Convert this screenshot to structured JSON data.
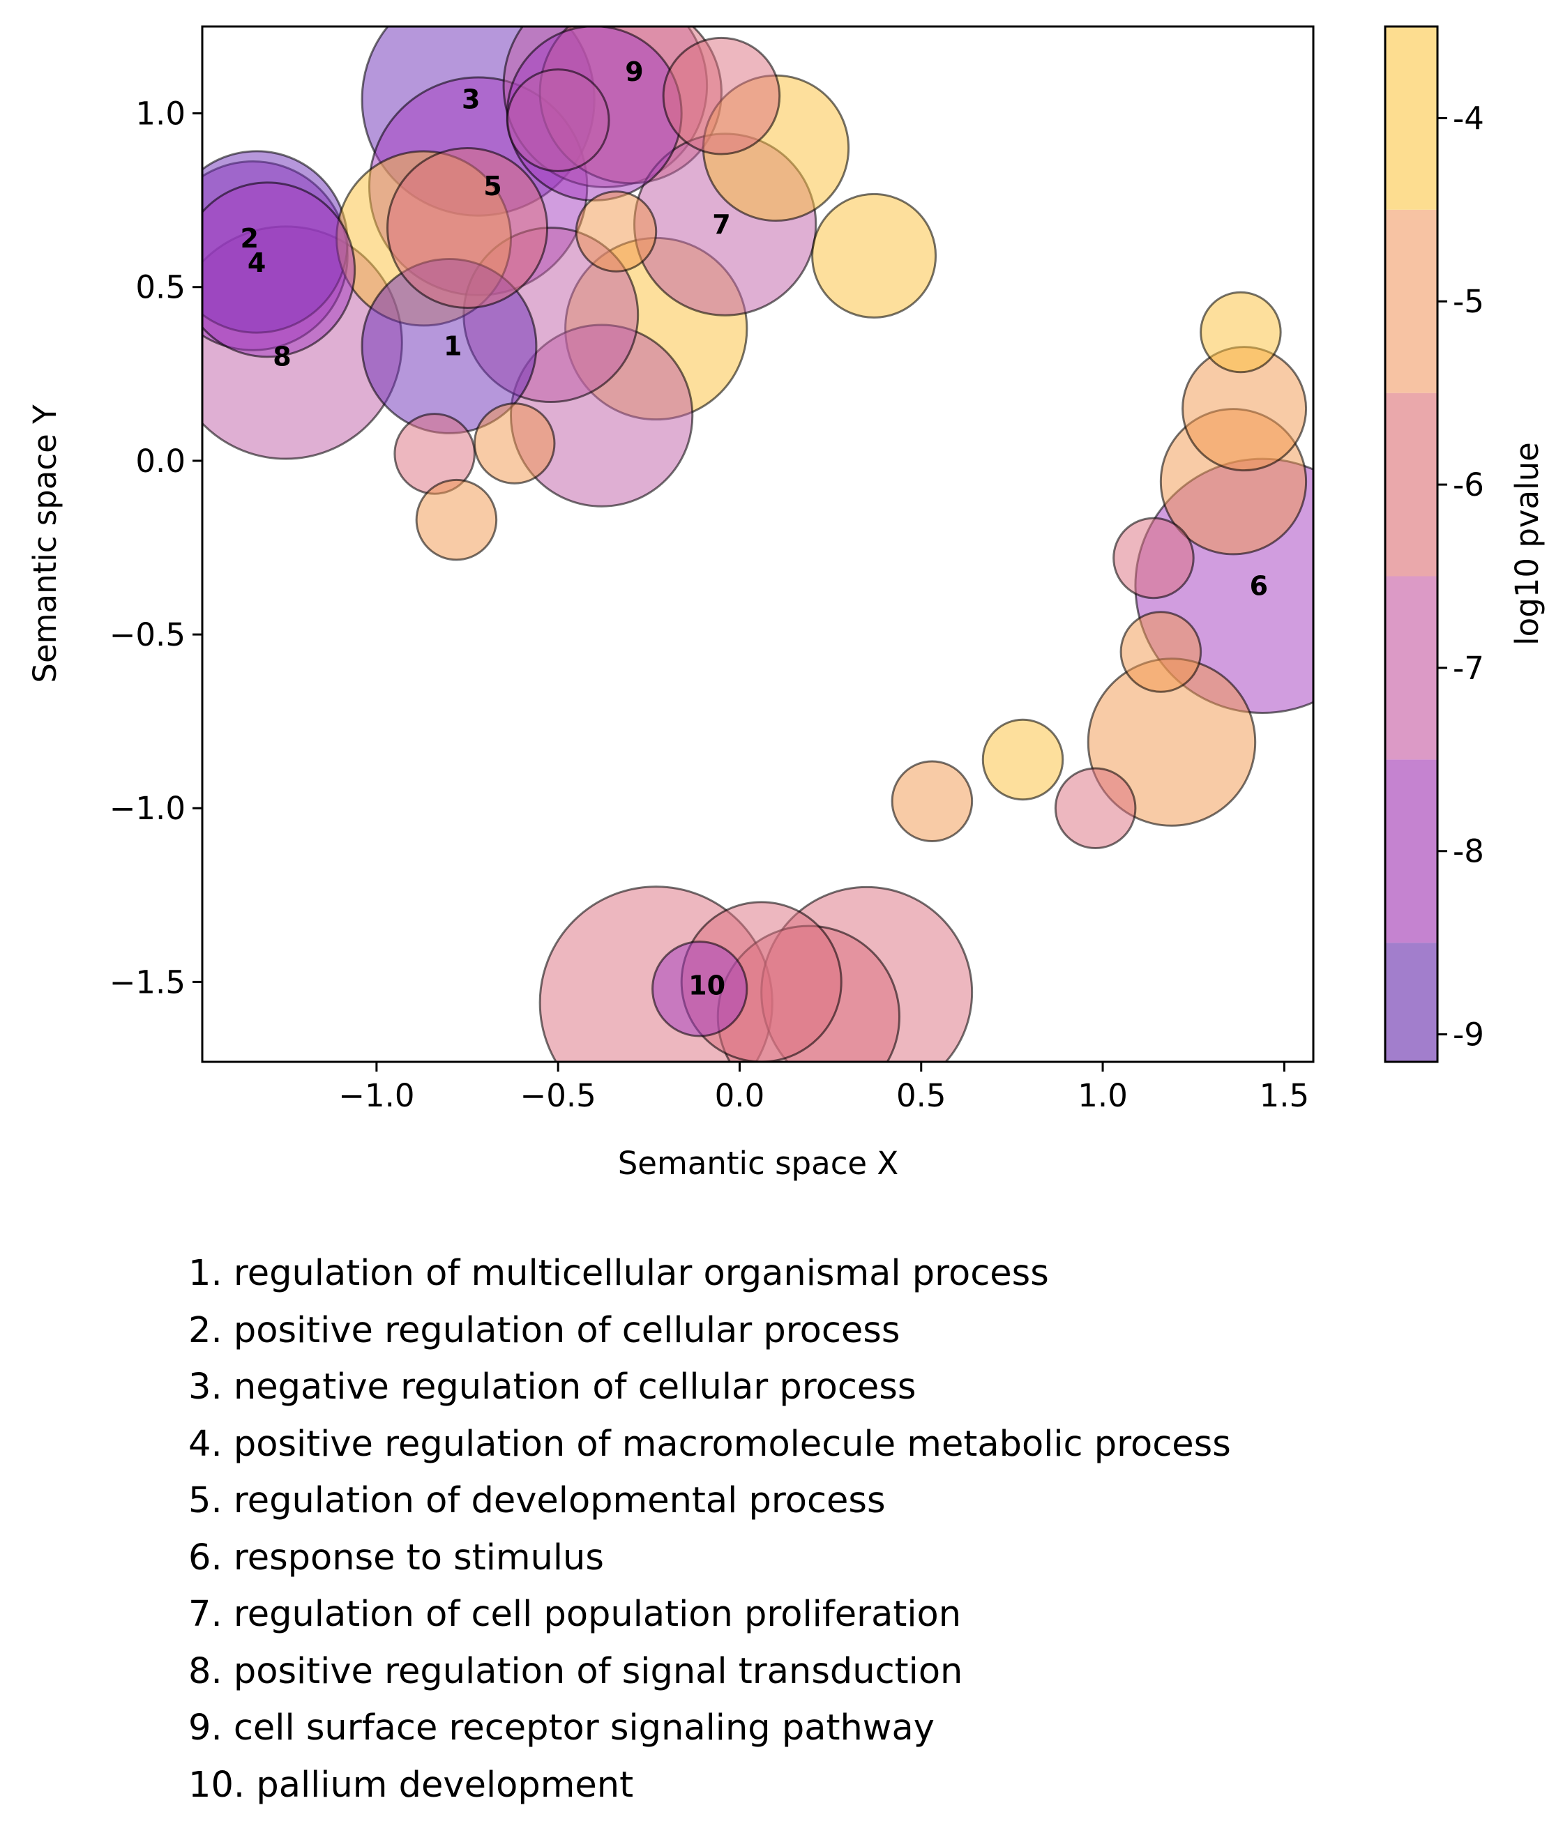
{
  "chart_data": {
    "type": "scatter",
    "variant": "bubble",
    "xlabel": "Semantic space X",
    "ylabel": "Semantic space Y",
    "xlim": [
      -1.48,
      1.58
    ],
    "ylim": [
      -1.73,
      1.25
    ],
    "xticks": [
      -1.0,
      -0.5,
      0.0,
      0.5,
      1.0,
      1.5
    ],
    "xtick_labels": [
      "−1.0",
      "−0.5",
      "0.0",
      "0.5",
      "1.0",
      "1.5"
    ],
    "yticks": [
      1.0,
      0.5,
      0.0,
      -0.5,
      -1.0,
      -1.5
    ],
    "ytick_labels": [
      "1.0",
      "0.5",
      "0.0",
      "−0.5",
      "−1.0",
      "−1.5"
    ],
    "grid": false,
    "colorbar": {
      "label": "log10 pvalue",
      "ticks": [
        -4,
        -5,
        -6,
        -7,
        -8,
        -9
      ],
      "tick_labels": [
        "-4",
        "-5",
        "-6",
        "-7",
        "-8",
        "-9"
      ],
      "range": [
        -9.15,
        -3.5
      ],
      "bands": [
        {
          "from": -9.15,
          "to": -8.5,
          "color": "#a27ecc"
        },
        {
          "from": -8.5,
          "to": -7.5,
          "color": "#c583d0"
        },
        {
          "from": -7.5,
          "to": -6.5,
          "color": "#dc9ac6"
        },
        {
          "from": -6.5,
          "to": -5.5,
          "color": "#eaa8ab"
        },
        {
          "from": -5.5,
          "to": -4.5,
          "color": "#f7c3a3"
        },
        {
          "from": -4.5,
          "to": -3.5,
          "color": "#fddd90"
        }
      ]
    },
    "colors": {
      "-9": "#6d2fb8",
      "-8": "#a43bc0",
      "-7": "#c060a8",
      "-6": "#dc707f",
      "-5": "#f2984e",
      "-4": "#fcbf3a"
    },
    "points": [
      {
        "x": -1.25,
        "y": 0.34,
        "size": 0.32,
        "log10_pvalue": -7
      },
      {
        "x": -0.52,
        "y": 0.42,
        "size": 0.24,
        "log10_pvalue": -7
      },
      {
        "x": -0.23,
        "y": 0.38,
        "size": 0.25,
        "log10_pvalue": -4
      },
      {
        "x": -0.38,
        "y": 0.13,
        "size": 0.25,
        "log10_pvalue": -7
      },
      {
        "x": -0.87,
        "y": 0.64,
        "size": 0.24,
        "log10_pvalue": -4
      },
      {
        "x": -0.75,
        "y": 0.67,
        "size": 0.22,
        "log10_pvalue": -6
      },
      {
        "x": -0.8,
        "y": 0.33,
        "size": 0.24,
        "log10_pvalue": -9
      },
      {
        "x": -1.33,
        "y": 0.63,
        "size": 0.25,
        "log10_pvalue": -9
      },
      {
        "x": -1.34,
        "y": 0.59,
        "size": 0.26,
        "log10_pvalue": -8
      },
      {
        "x": -1.3,
        "y": 0.55,
        "size": 0.24,
        "log10_pvalue": -8
      },
      {
        "x": -0.72,
        "y": 1.04,
        "size": 0.32,
        "log10_pvalue": -9
      },
      {
        "x": -0.5,
        "y": 0.98,
        "size": 0.14,
        "log10_pvalue": -7
      },
      {
        "x": -0.72,
        "y": 0.79,
        "size": 0.3,
        "log10_pvalue": -8
      },
      {
        "x": -0.34,
        "y": 0.66,
        "size": 0.11,
        "log10_pvalue": -5
      },
      {
        "x": -0.4,
        "y": 1.0,
        "size": 0.24,
        "log10_pvalue": -8
      },
      {
        "x": -0.37,
        "y": 1.08,
        "size": 0.28,
        "log10_pvalue": -7
      },
      {
        "x": -0.3,
        "y": 1.06,
        "size": 0.25,
        "log10_pvalue": -6
      },
      {
        "x": -0.05,
        "y": 1.05,
        "size": 0.16,
        "log10_pvalue": -6
      },
      {
        "x": 0.1,
        "y": 0.9,
        "size": 0.2,
        "log10_pvalue": -4
      },
      {
        "x": 0.37,
        "y": 0.59,
        "size": 0.17,
        "log10_pvalue": -4
      },
      {
        "x": -0.04,
        "y": 0.68,
        "size": 0.25,
        "log10_pvalue": -7
      },
      {
        "x": -0.84,
        "y": 0.02,
        "size": 0.11,
        "log10_pvalue": -6
      },
      {
        "x": -0.62,
        "y": 0.05,
        "size": 0.11,
        "log10_pvalue": -5
      },
      {
        "x": -0.78,
        "y": -0.17,
        "size": 0.11,
        "log10_pvalue": -5
      },
      {
        "x": 1.38,
        "y": 0.37,
        "size": 0.11,
        "log10_pvalue": -4
      },
      {
        "x": 1.39,
        "y": 0.15,
        "size": 0.17,
        "log10_pvalue": -5
      },
      {
        "x": 1.36,
        "y": -0.06,
        "size": 0.2,
        "log10_pvalue": -5
      },
      {
        "x": 1.44,
        "y": -0.36,
        "size": 0.35,
        "log10_pvalue": -8
      },
      {
        "x": 1.14,
        "y": -0.28,
        "size": 0.11,
        "log10_pvalue": -6
      },
      {
        "x": 1.16,
        "y": -0.55,
        "size": 0.11,
        "log10_pvalue": -5
      },
      {
        "x": 1.19,
        "y": -0.81,
        "size": 0.23,
        "log10_pvalue": -5
      },
      {
        "x": 0.78,
        "y": -0.86,
        "size": 0.11,
        "log10_pvalue": -4
      },
      {
        "x": 0.53,
        "y": -0.98,
        "size": 0.11,
        "log10_pvalue": -5
      },
      {
        "x": 0.98,
        "y": -1.0,
        "size": 0.11,
        "log10_pvalue": -6
      },
      {
        "x": -0.23,
        "y": -1.56,
        "size": 0.32,
        "log10_pvalue": -6
      },
      {
        "x": 0.06,
        "y": -1.5,
        "size": 0.22,
        "log10_pvalue": -6
      },
      {
        "x": 0.35,
        "y": -1.53,
        "size": 0.29,
        "log10_pvalue": -6
      },
      {
        "x": 0.19,
        "y": -1.6,
        "size": 0.25,
        "log10_pvalue": -6
      },
      {
        "x": -0.11,
        "y": -1.52,
        "size": 0.13,
        "log10_pvalue": -8
      }
    ],
    "cluster_labels": [
      {
        "text": "1",
        "x": -0.79,
        "y": 0.33
      },
      {
        "text": "2",
        "x": -1.35,
        "y": 0.64
      },
      {
        "text": "3",
        "x": -0.74,
        "y": 1.04
      },
      {
        "text": "4",
        "x": -1.33,
        "y": 0.57
      },
      {
        "text": "5",
        "x": -0.68,
        "y": 0.79
      },
      {
        "text": "6",
        "x": 1.43,
        "y": -0.36
      },
      {
        "text": "7",
        "x": -0.05,
        "y": 0.68
      },
      {
        "text": "8",
        "x": -1.26,
        "y": 0.3
      },
      {
        "text": "9",
        "x": -0.29,
        "y": 1.12
      },
      {
        "text": "10",
        "x": -0.09,
        "y": -1.51
      }
    ]
  },
  "legend": [
    "1. regulation of multicellular organismal process",
    "2. positive regulation of cellular process",
    "3. negative regulation of cellular process",
    "4. positive regulation of macromolecule metabolic process",
    "5. regulation of developmental process",
    "6. response to stimulus",
    "7. regulation of cell population proliferation",
    "8. positive regulation of signal transduction",
    "9. cell surface receptor signaling pathway",
    "10. pallium development"
  ]
}
